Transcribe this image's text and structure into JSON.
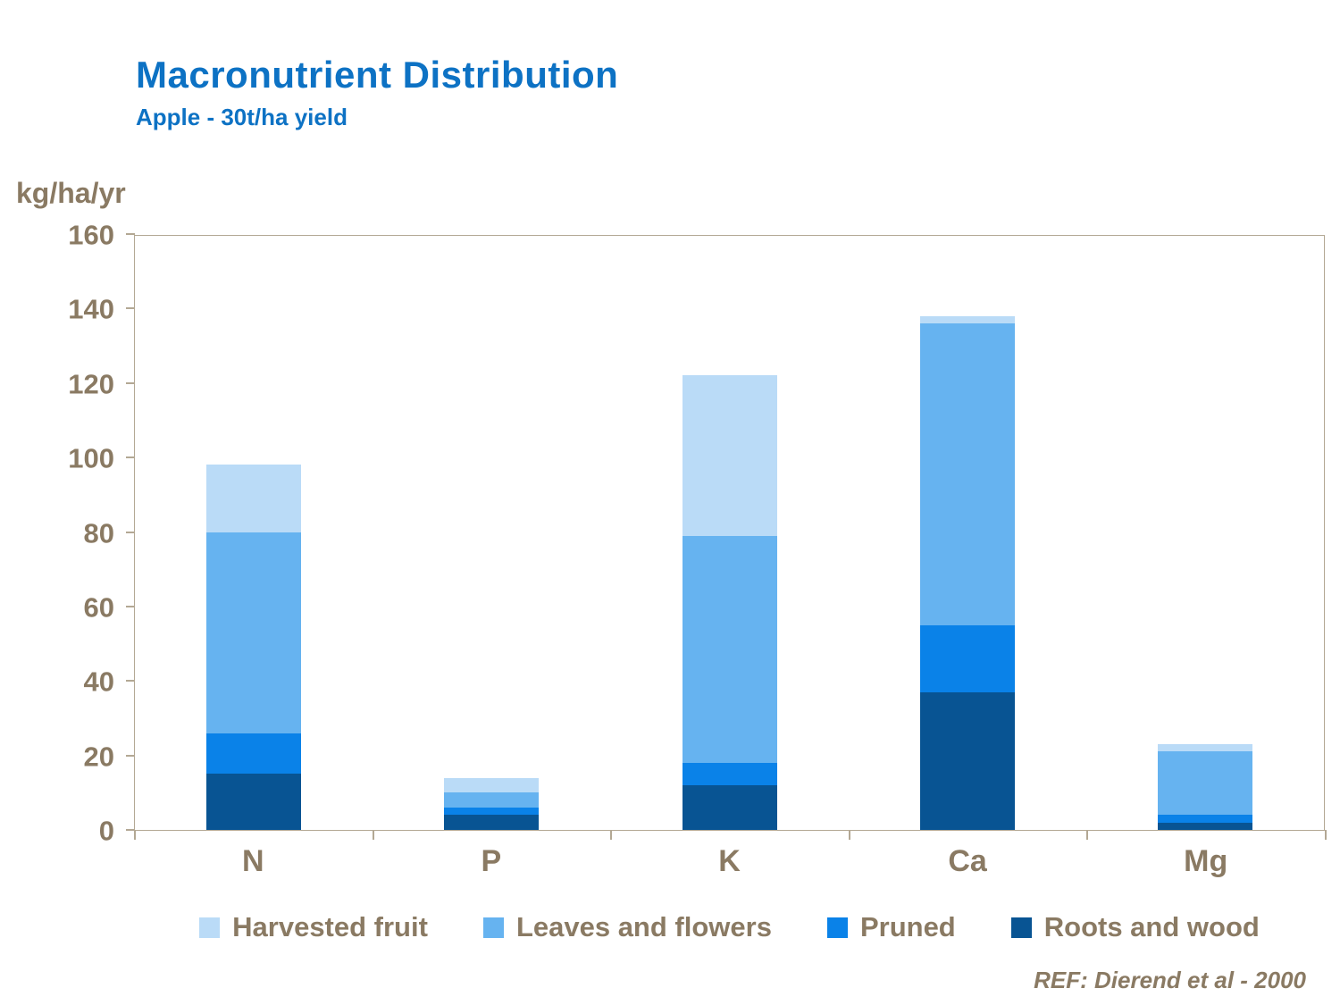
{
  "title": "Macronutrient Distribution",
  "subtitle": "Apple - 30t/ha yield",
  "y_axis_title": "kg/ha/yr",
  "ref": "REF: Dierend et al - 2000",
  "colors": {
    "title_blue": "#0d72c4",
    "axis_text": "#8a7a63",
    "plot_border": "#b3a894",
    "harvested": "#badbf7",
    "leaves": "#66b3f0",
    "pruned": "#0a82e8",
    "roots": "#085493"
  },
  "chart_data": {
    "type": "bar",
    "stacked": true,
    "title": "Macronutrient Distribution",
    "subtitle": "Apple - 30t/ha yield",
    "ylabel": "kg/ha/yr",
    "ylim": [
      0,
      160
    ],
    "ytick_step": 20,
    "grid": false,
    "legend_position": "bottom",
    "categories": [
      "N",
      "P",
      "K",
      "Ca",
      "Mg"
    ],
    "series": [
      {
        "name": "Roots and wood",
        "color_key": "roots",
        "values": [
          15,
          4,
          12,
          37,
          2
        ]
      },
      {
        "name": "Pruned",
        "color_key": "pruned",
        "values": [
          11,
          2,
          6,
          18,
          2
        ]
      },
      {
        "name": "Leaves and flowers",
        "color_key": "leaves",
        "values": [
          54,
          4,
          61,
          81,
          17
        ]
      },
      {
        "name": "Harvested fruit",
        "color_key": "harvested",
        "values": [
          18,
          4,
          43,
          2,
          2
        ]
      }
    ],
    "legend": [
      {
        "label": "Harvested fruit",
        "color_key": "harvested"
      },
      {
        "label": "Leaves and flowers",
        "color_key": "leaves"
      },
      {
        "label": "Pruned",
        "color_key": "pruned"
      },
      {
        "label": "Roots and wood",
        "color_key": "roots"
      }
    ]
  }
}
